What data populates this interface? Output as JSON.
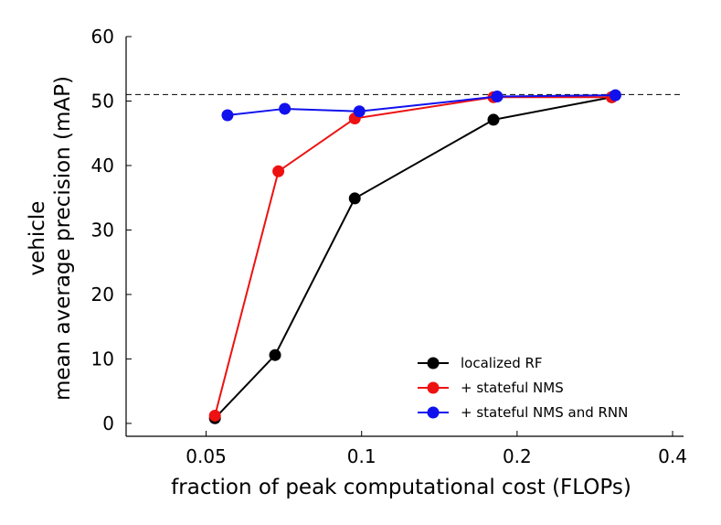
{
  "chart_data": {
    "type": "line",
    "title": "",
    "xlabel": "fraction of peak computational cost (FLOPs)",
    "ylabel_lines": [
      "vehicle",
      "mean average precision (mAP)"
    ],
    "x_scale": "log",
    "xlim": [
      0.035,
      0.42
    ],
    "ylim": [
      -2,
      60
    ],
    "x_ticks": [
      0.05,
      0.1,
      0.2,
      0.4
    ],
    "x_tick_labels": [
      "0.05",
      "0.1",
      "0.2",
      "0.4"
    ],
    "y_ticks": [
      0,
      10,
      20,
      30,
      40,
      50,
      60
    ],
    "y_tick_labels": [
      "0",
      "10",
      "20",
      "30",
      "40",
      "50",
      "60"
    ],
    "reference_line": {
      "y": 51,
      "style": "dashed",
      "color": "#000000"
    },
    "legend_position": "bottom-right",
    "series": [
      {
        "name": "localized RF",
        "color": "#000000",
        "x": [
          0.052,
          0.068,
          0.097,
          0.18,
          0.305
        ],
        "y": [
          0.8,
          10.6,
          34.9,
          47.1,
          50.6
        ]
      },
      {
        "name": "+ stateful NMS",
        "color": "#ee1111",
        "x": [
          0.052,
          0.069,
          0.097,
          0.18,
          0.305
        ],
        "y": [
          1.2,
          39.1,
          47.3,
          50.6,
          50.6
        ]
      },
      {
        "name": "+ stateful NMS and RNN",
        "color": "#1111ee",
        "x": [
          0.055,
          0.071,
          0.099,
          0.183,
          0.31
        ],
        "y": [
          47.8,
          48.8,
          48.4,
          50.7,
          50.9
        ]
      }
    ]
  }
}
